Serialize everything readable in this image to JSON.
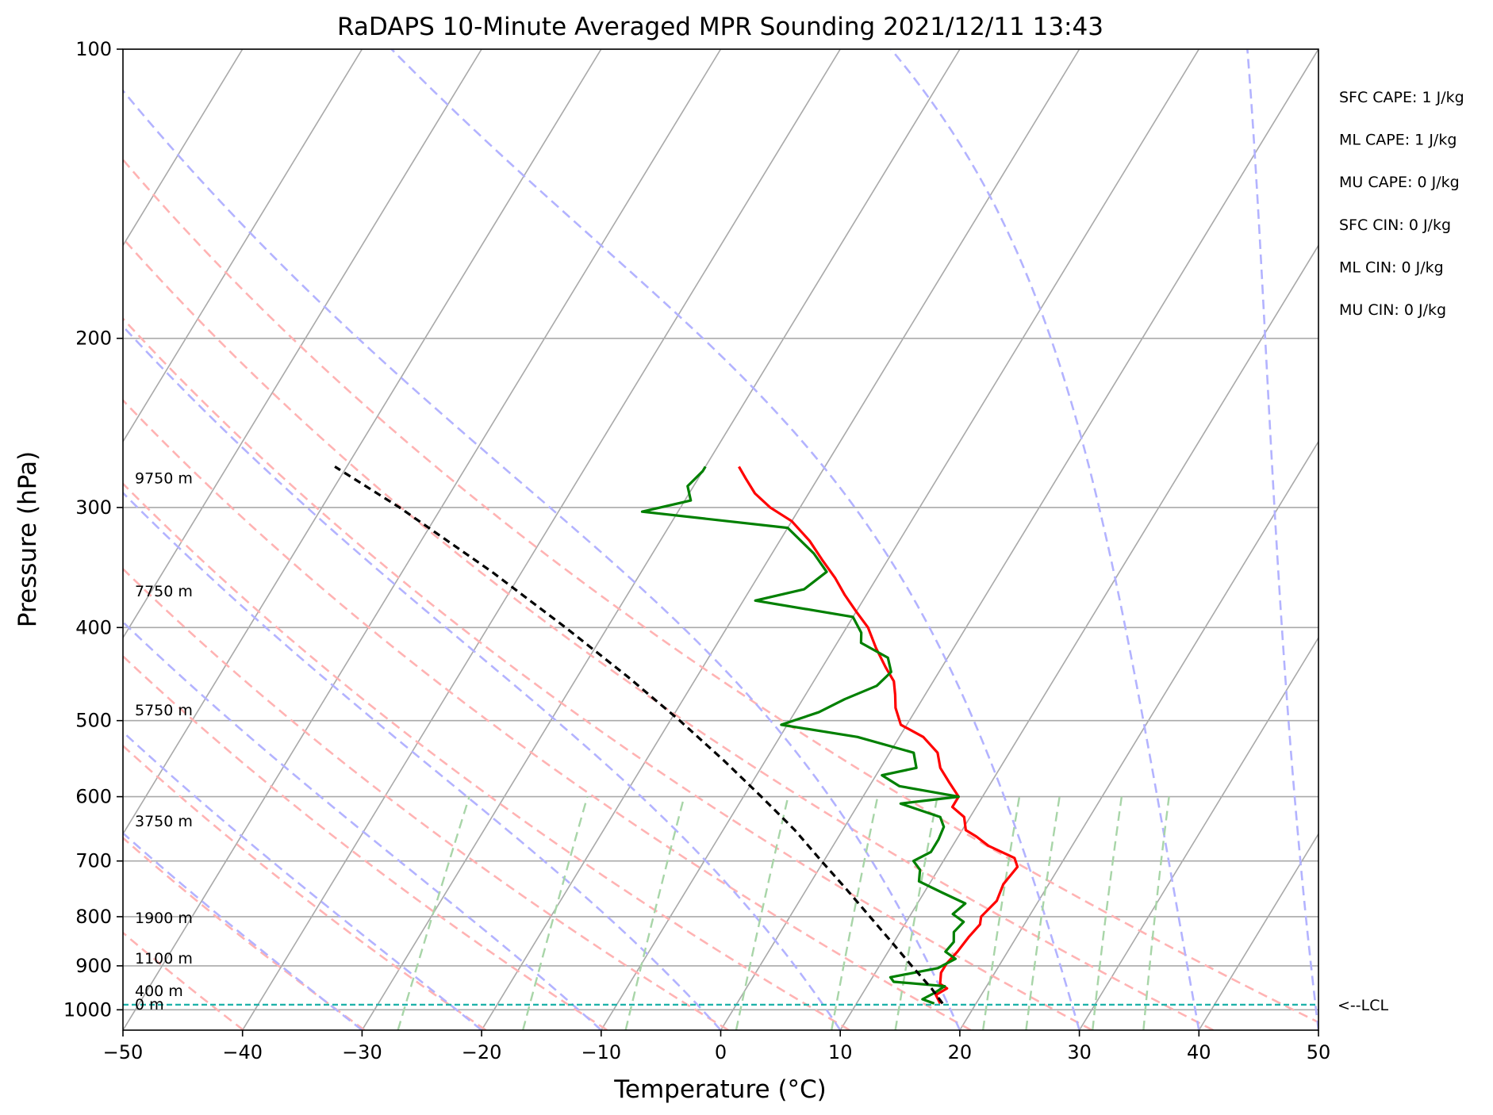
{
  "chart_data": {
    "type": "line",
    "subtype": "skew-t log-p sounding",
    "title": "RaDAPS 10-Minute Averaged MPR Sounding 2021/12/11 13:43",
    "xlabel": "Temperature (°C)",
    "ylabel": "Pressure (hPa)",
    "xlim": [
      -50,
      50
    ],
    "ylim": [
      1050,
      100
    ],
    "y_scale": "log",
    "x_ticks": [
      -50,
      -40,
      -30,
      -20,
      -10,
      0,
      10,
      20,
      30,
      40,
      50
    ],
    "x_tick_labels": [
      "−50",
      "−40",
      "−30",
      "−20",
      "−10",
      "0",
      "10",
      "20",
      "30",
      "40",
      "50"
    ],
    "y_ticks": [
      100,
      200,
      300,
      400,
      500,
      600,
      700,
      800,
      900,
      1000
    ],
    "y_tick_labels": [
      "100",
      "200",
      "300",
      "400",
      "500",
      "600",
      "700",
      "800",
      "900",
      "1000"
    ],
    "skew_factor": 0.5,
    "background_lines": {
      "isotherm_color": "#a9a9a9",
      "dry_adiabat_color": "#ffb3b3",
      "moist_adiabat_color": "#b3b3ff",
      "mixing_ratio_color": "#a8d5a8",
      "mixing_ratio_top_hpa": 600,
      "isotherms_c": [
        -170,
        -160,
        -150,
        -140,
        -130,
        -120,
        -110,
        -100,
        -90,
        -80,
        -70,
        -60,
        -50,
        -40,
        -30,
        -20,
        -10,
        0,
        10,
        20,
        30,
        40,
        50
      ],
      "dry_adiabat_theta_k": [
        190,
        200,
        210,
        220,
        230,
        240,
        250,
        260,
        270,
        280,
        290,
        300,
        310,
        320
      ],
      "moist_adiabat_start_c": [
        -30,
        -20,
        -10,
        0,
        10,
        20,
        30,
        40,
        50
      ],
      "mixing_ratio_g_per_kg": [
        0.4,
        1,
        2,
        4,
        7,
        10,
        16,
        20,
        28,
        36
      ]
    },
    "series": [
      {
        "name": "",
        "role": "temperature",
        "color": "#ff0000",
        "points": [
          [
            985,
            17.0
          ],
          [
            965,
            16.2
          ],
          [
            950,
            16.8
          ],
          [
            940,
            16.0
          ],
          [
            915,
            15.5
          ],
          [
            895,
            15.5
          ],
          [
            870,
            15.8
          ],
          [
            840,
            16.0
          ],
          [
            815,
            16.3
          ],
          [
            800,
            16.0
          ],
          [
            770,
            16.5
          ],
          [
            740,
            16.2
          ],
          [
            710,
            16.5
          ],
          [
            695,
            15.8
          ],
          [
            675,
            13.0
          ],
          [
            660,
            11.5
          ],
          [
            650,
            10.3
          ],
          [
            630,
            9.5
          ],
          [
            615,
            8.0
          ],
          [
            600,
            8.0
          ],
          [
            580,
            6.5
          ],
          [
            560,
            5.0
          ],
          [
            540,
            4.0
          ],
          [
            520,
            2.0
          ],
          [
            505,
            -0.5
          ],
          [
            485,
            -1.8
          ],
          [
            470,
            -2.5
          ],
          [
            455,
            -3.3
          ],
          [
            440,
            -4.7
          ],
          [
            420,
            -6.5
          ],
          [
            400,
            -8.2
          ],
          [
            385,
            -10.0
          ],
          [
            370,
            -11.8
          ],
          [
            355,
            -13.5
          ],
          [
            340,
            -15.5
          ],
          [
            325,
            -17.5
          ],
          [
            310,
            -20.0
          ],
          [
            300,
            -22.5
          ],
          [
            290,
            -24.5
          ],
          [
            280,
            -26.0
          ],
          [
            272,
            -27.2
          ]
        ]
      },
      {
        "name": "",
        "role": "dewpoint",
        "color": "#008000",
        "points": [
          [
            985,
            16.5
          ],
          [
            975,
            15.3
          ],
          [
            960,
            16.0
          ],
          [
            945,
            16.5
          ],
          [
            935,
            12.0
          ],
          [
            925,
            11.5
          ],
          [
            905,
            15.0
          ],
          [
            885,
            16.0
          ],
          [
            870,
            14.8
          ],
          [
            850,
            15.0
          ],
          [
            830,
            14.5
          ],
          [
            810,
            14.8
          ],
          [
            795,
            13.5
          ],
          [
            775,
            14.0
          ],
          [
            755,
            11.5
          ],
          [
            735,
            9.0
          ],
          [
            715,
            8.5
          ],
          [
            700,
            7.5
          ],
          [
            685,
            8.5
          ],
          [
            665,
            8.5
          ],
          [
            645,
            8.3
          ],
          [
            630,
            7.5
          ],
          [
            610,
            3.5
          ],
          [
            600,
            8.0
          ],
          [
            585,
            2.5
          ],
          [
            570,
            0.5
          ],
          [
            560,
            3.0
          ],
          [
            540,
            2.0
          ],
          [
            520,
            -3.5
          ],
          [
            505,
            -10.5
          ],
          [
            490,
            -8.0
          ],
          [
            475,
            -6.5
          ],
          [
            460,
            -4.5
          ],
          [
            445,
            -4.0
          ],
          [
            430,
            -5.0
          ],
          [
            415,
            -8.0
          ],
          [
            405,
            -8.5
          ],
          [
            390,
            -10.0
          ],
          [
            375,
            -19.0
          ],
          [
            365,
            -15.5
          ],
          [
            350,
            -14.5
          ],
          [
            335,
            -16.5
          ],
          [
            315,
            -20.0
          ],
          [
            303,
            -33.0
          ],
          [
            295,
            -29.5
          ],
          [
            285,
            -30.5
          ],
          [
            275,
            -30.0
          ],
          [
            272,
            -30.0
          ]
        ]
      },
      {
        "name": "",
        "role": "parcel",
        "color": "#000000",
        "style": "dashed",
        "points": [
          [
            985,
            17.2
          ],
          [
            950,
            15.5
          ],
          [
            900,
            12.7
          ],
          [
            850,
            9.8
          ],
          [
            800,
            6.7
          ],
          [
            750,
            3.4
          ],
          [
            700,
            -0.2
          ],
          [
            650,
            -4.0
          ],
          [
            600,
            -8.5
          ],
          [
            550,
            -13.5
          ],
          [
            500,
            -19.2
          ],
          [
            450,
            -25.8
          ],
          [
            400,
            -33.5
          ],
          [
            350,
            -42.5
          ],
          [
            300,
            -53.5
          ],
          [
            272,
            -61.0
          ]
        ]
      }
    ],
    "lcl": {
      "pressure_hpa": 988,
      "label": "<--LCL",
      "color": "#20b2aa"
    },
    "height_labels": [
      {
        "text": "9750 m",
        "pressure_hpa": 280
      },
      {
        "text": "7750 m",
        "pressure_hpa": 367
      },
      {
        "text": "5750 m",
        "pressure_hpa": 488
      },
      {
        "text": "3750 m",
        "pressure_hpa": 637
      },
      {
        "text": "1900 m",
        "pressure_hpa": 803
      },
      {
        "text": "1100 m",
        "pressure_hpa": 885
      },
      {
        "text": "400 m",
        "pressure_hpa": 957
      },
      {
        "text": "0 m",
        "pressure_hpa": 988
      }
    ],
    "stats": [
      {
        "id": "sfc-cape",
        "text": "SFC CAPE: 1 J/kg"
      },
      {
        "id": "ml-cape",
        "text": "ML CAPE: 1 J/kg"
      },
      {
        "id": "mu-cape",
        "text": "MU CAPE: 0 J/kg"
      },
      {
        "id": "sfc-cin",
        "text": "SFC CIN: 0 J/kg"
      },
      {
        "id": "ml-cin",
        "text": "ML CIN: 0 J/kg"
      },
      {
        "id": "mu-cin",
        "text": "MU CIN: 0 J/kg"
      }
    ]
  }
}
